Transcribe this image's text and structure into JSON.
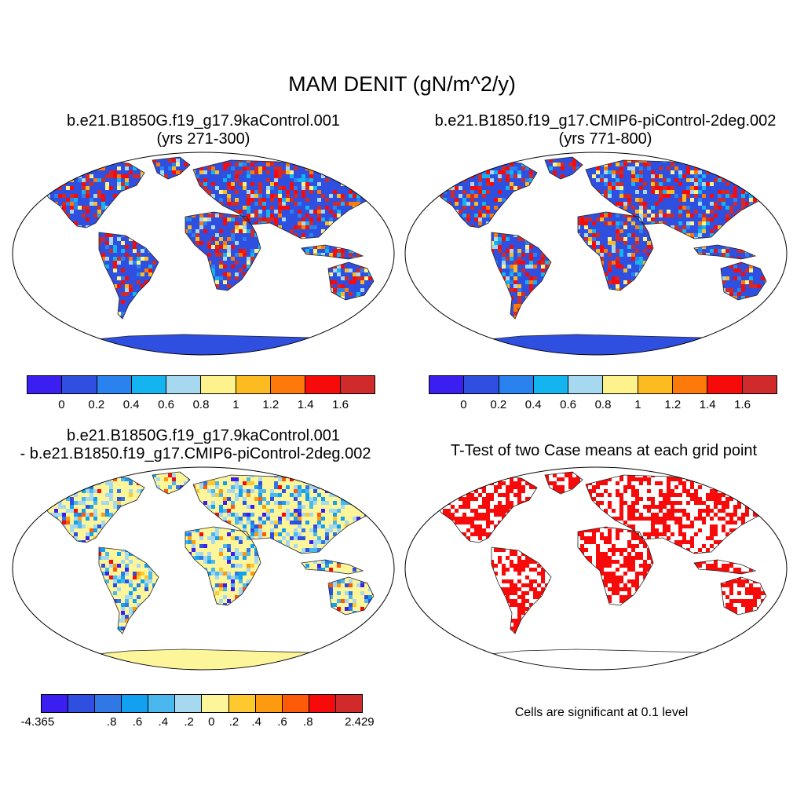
{
  "title": "MAM DENIT (gN/m^2/y)",
  "panels": [
    {
      "title_line1": "b.e21.B1850G.f19_g17.9kaControl.001",
      "title_line2": "(yrs 271-300)"
    },
    {
      "title_line1": "b.e21.B1850.f19_g17.CMIP6-piControl-2deg.002",
      "title_line2": "(yrs 771-800)"
    },
    {
      "title_line1": "b.e21.B1850G.f19_g17.9kaControl.001",
      "title_line2": "- b.e21.B1850.f19_g17.CMIP6-piControl-2deg.002"
    },
    {
      "title_line1": "T-Test of two Case means at each grid point",
      "note": "Cells are significant at 0.1 level"
    }
  ],
  "colorbar_abs": {
    "colors": [
      "#3a1ff0",
      "#2f4fe0",
      "#2a82ee",
      "#14b4f0",
      "#a6d8ef",
      "#fdf28c",
      "#fdbb22",
      "#fd7a0a",
      "#f70a0a",
      "#d12a2a"
    ],
    "labels": [
      "0",
      "0.2",
      "0.4",
      "0.6",
      "0.8",
      "1",
      "1.2",
      "1.4",
      "1.6"
    ]
  },
  "colorbar_diff": {
    "colors": [
      "#3a1ff0",
      "#2f4fe0",
      "#2f78e6",
      "#14a0f0",
      "#4ab8ef",
      "#a6d8ef",
      "#fdf59a",
      "#fdc92e",
      "#fd9a10",
      "#fd5a0a",
      "#f70a0a",
      "#d12a2a"
    ],
    "labels": [
      "-4.365",
      ".8",
      ".6",
      ".4",
      ".2",
      "0",
      ".2",
      ".4",
      ".6",
      ".8",
      "2.429"
    ]
  }
}
